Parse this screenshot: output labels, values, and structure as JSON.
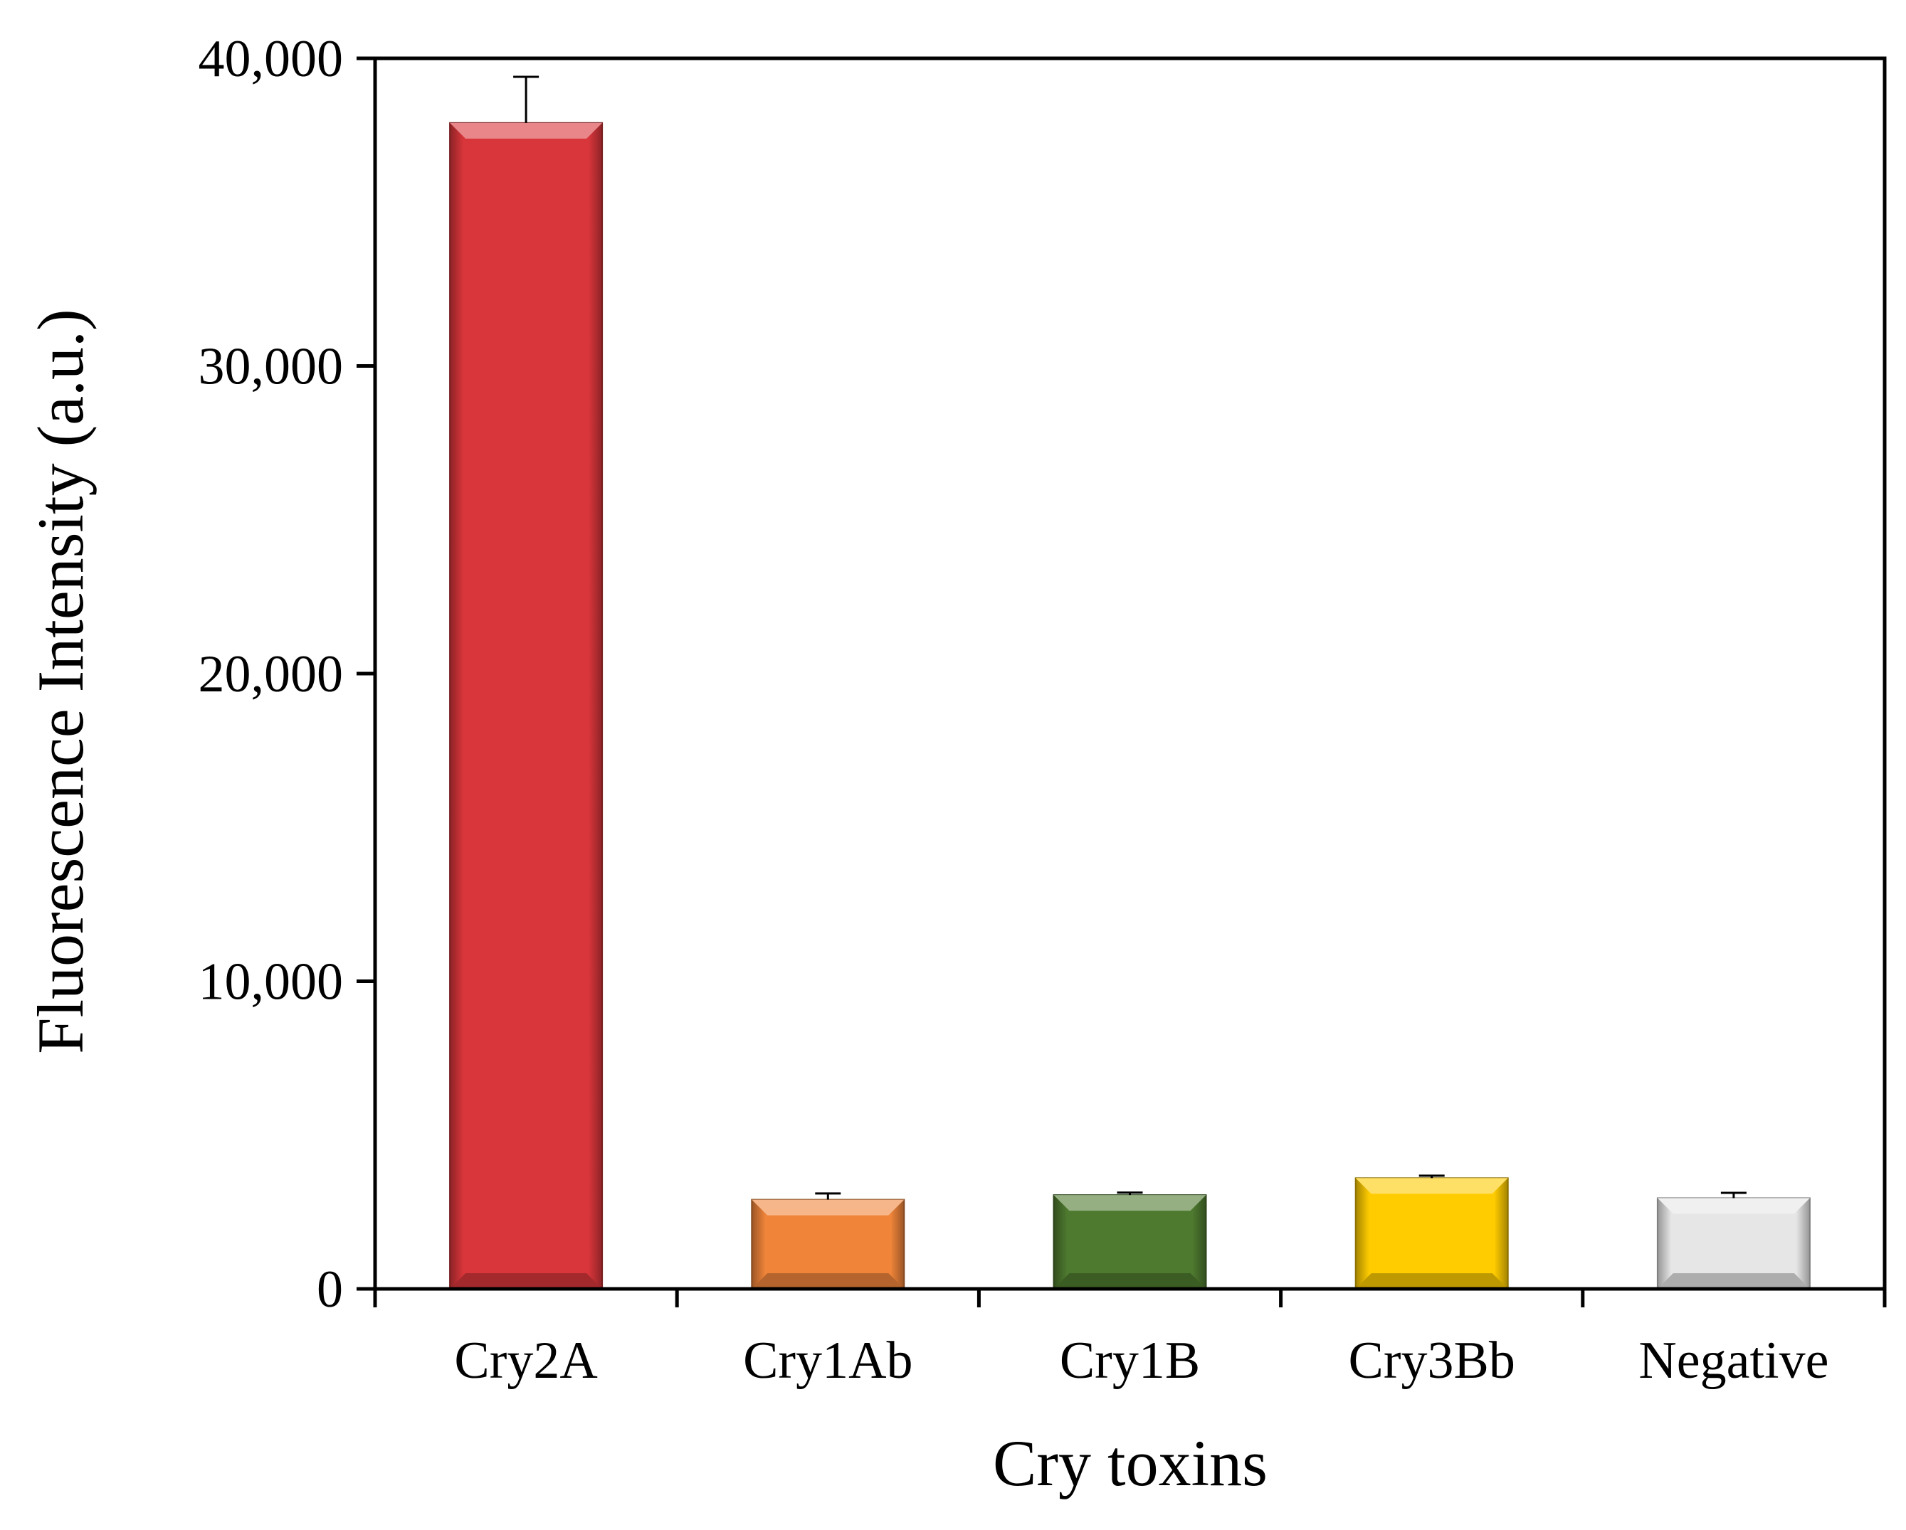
{
  "chart_data": {
    "type": "bar",
    "xlabel": "Cry toxins",
    "ylabel": "Fluorescence Intensity (a.u.)",
    "ylim": [
      0,
      40000
    ],
    "yticks": [
      0,
      10000,
      20000,
      30000,
      40000
    ],
    "ytick_labels": [
      "0",
      "10,000",
      "20,000",
      "30,000",
      "40,000"
    ],
    "categories": [
      "Cry2A",
      "Cry1Ab",
      "Cry1B",
      "Cry3Bb",
      "Negative"
    ],
    "values": [
      37900,
      2900,
      3050,
      3600,
      2950
    ],
    "errors": [
      1500,
      200,
      80,
      80,
      170
    ],
    "colors": [
      "#d9363b",
      "#f0853a",
      "#4e7a2f",
      "#ffcc00",
      "#e6e6e6"
    ],
    "grid": false,
    "legend": "none"
  }
}
